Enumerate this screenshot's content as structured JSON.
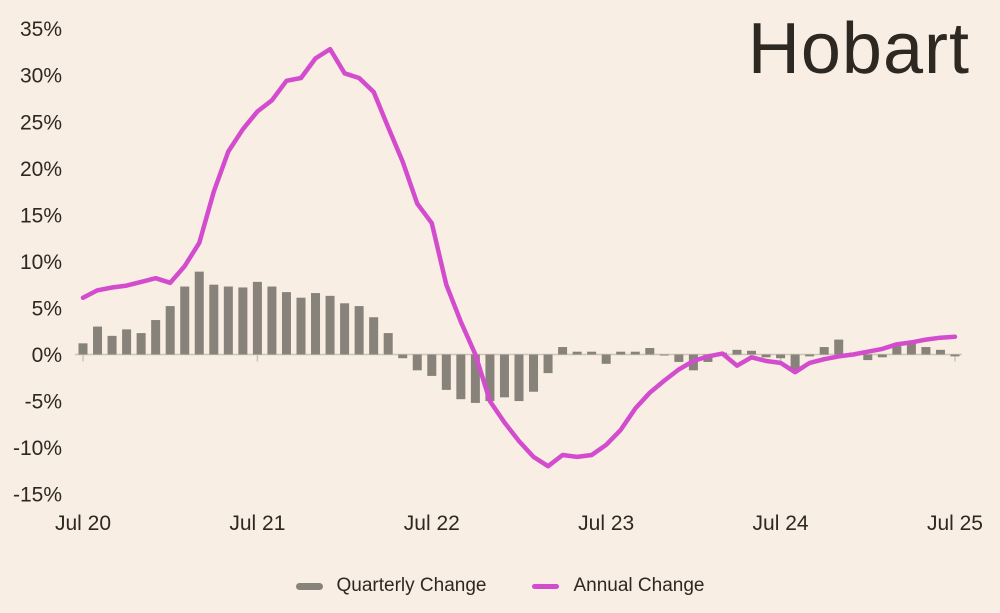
{
  "title": "Hobart",
  "colors": {
    "background": "#f8eee3",
    "bar": "#87827a",
    "line": "#d24ccd",
    "text": "#2d2822",
    "axis": "#ccc5b8"
  },
  "legend": [
    {
      "label": "Quarterly Change",
      "swatch": "bar-dash"
    },
    {
      "label": "Annual Change",
      "swatch": "line-dash"
    }
  ],
  "chart_data": {
    "type": "combo",
    "title": "Hobart",
    "xlabel": "",
    "ylabel": "",
    "grid": false,
    "legend_position": "bottom",
    "ylim": [
      -15,
      35
    ],
    "y_ticks": [
      35,
      30,
      25,
      20,
      15,
      10,
      5,
      0,
      -5,
      -10,
      -15
    ],
    "y_tick_suffix": "%",
    "x_tick_indices": [
      0,
      12,
      24,
      36,
      48,
      60
    ],
    "x_tick_labels": [
      "Jul 20",
      "Jul 21",
      "Jul 22",
      "Jul 23",
      "Jul 24",
      "Jul 25"
    ],
    "categories": [
      "Jul 20",
      "Aug 20",
      "Sep 20",
      "Oct 20",
      "Nov 20",
      "Dec 20",
      "Jan 21",
      "Feb 21",
      "Mar 21",
      "Apr 21",
      "May 21",
      "Jun 21",
      "Jul 21",
      "Aug 21",
      "Sep 21",
      "Oct 21",
      "Nov 21",
      "Dec 21",
      "Jan 22",
      "Feb 22",
      "Mar 22",
      "Apr 22",
      "May 22",
      "Jun 22",
      "Jul 22",
      "Aug 22",
      "Sep 22",
      "Oct 22",
      "Nov 22",
      "Dec 22",
      "Jan 23",
      "Feb 23",
      "Mar 23",
      "Apr 23",
      "May 23",
      "Jun 23",
      "Jul 23",
      "Aug 23",
      "Sep 23",
      "Oct 23",
      "Nov 23",
      "Dec 23",
      "Jan 24",
      "Feb 24",
      "Mar 24",
      "Apr 24",
      "May 24",
      "Jun 24",
      "Jul 24",
      "Aug 24",
      "Sep 24",
      "Oct 24",
      "Nov 24",
      "Dec 24",
      "Jan 25",
      "Feb 25",
      "Mar 25",
      "Apr 25",
      "May 25",
      "Jun 25",
      "Jul 25"
    ],
    "series": [
      {
        "name": "Quarterly Change",
        "type": "bar",
        "values": [
          1.2,
          3.0,
          2.0,
          2.7,
          2.3,
          3.7,
          5.2,
          7.3,
          8.9,
          7.5,
          7.3,
          7.2,
          7.8,
          7.3,
          6.7,
          6.1,
          6.6,
          6.3,
          5.5,
          5.2,
          4.0,
          2.3,
          -0.4,
          -1.7,
          -2.3,
          -3.8,
          -4.8,
          -5.2,
          -5.0,
          -4.6,
          -5.0,
          -4.0,
          -2.0,
          0.8,
          0.3,
          0.3,
          -1.0,
          0.3,
          0.3,
          0.7,
          -0.1,
          -0.8,
          -1.7,
          -0.8,
          0.2,
          0.5,
          0.4,
          -0.3,
          -0.4,
          -1.7,
          -0.2,
          0.8,
          1.6,
          0.2,
          -0.6,
          -0.3,
          0.9,
          1.3,
          0.8,
          0.5,
          -0.2
        ]
      },
      {
        "name": "Annual Change",
        "type": "line",
        "values": [
          6.1,
          6.9,
          7.2,
          7.4,
          7.8,
          8.2,
          7.7,
          9.5,
          12.0,
          17.5,
          21.8,
          24.2,
          26.1,
          27.3,
          29.4,
          29.7,
          31.8,
          32.8,
          30.2,
          29.7,
          28.2,
          24.4,
          20.7,
          16.2,
          14.1,
          7.5,
          3.5,
          0.0,
          -5.0,
          -7.3,
          -9.3,
          -11.0,
          -12.0,
          -10.8,
          -11.0,
          -10.8,
          -9.7,
          -8.1,
          -5.8,
          -4.1,
          -2.8,
          -1.6,
          -0.7,
          -0.2,
          0.1,
          -1.2,
          -0.3,
          -0.7,
          -0.9,
          -1.9,
          -0.9,
          -0.5,
          -0.2,
          0.0,
          0.3,
          0.6,
          1.1,
          1.3,
          1.6,
          1.8,
          1.9
        ]
      }
    ]
  }
}
